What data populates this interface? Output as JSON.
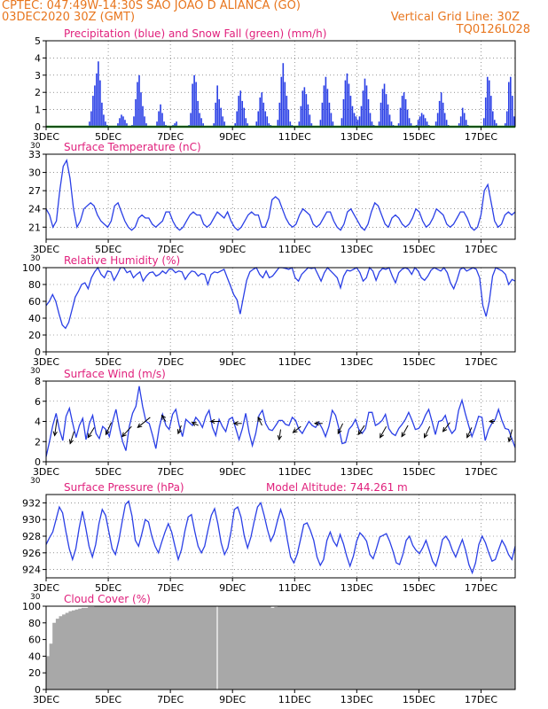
{
  "header": {
    "station": "CPTEC:  047:49W-14:30S  SAO JOAO D ALIANCA (GO)",
    "run": "03DEC2020 30Z (GMT)",
    "grid_note": "Vertical Grid Line: 30Z",
    "code": "TQ0126L028"
  },
  "colors": {
    "header": "#e8761e",
    "panel_title": "#e0207c",
    "line": "#2a3fe6",
    "precip_bar": "#2a3fe6",
    "snow_line": "#2ca02c",
    "cloud_fill": "#a8a8a8",
    "wind_arrow": "#000000",
    "grid": "#555555"
  },
  "x_axis": {
    "day_labels": [
      "3DEC",
      "5DEC",
      "7DEC",
      "9DEC",
      "11DEC",
      "13DEC",
      "15DEC",
      "17DEC"
    ],
    "day_positions": [
      3,
      5,
      7,
      9,
      11,
      13,
      15,
      17
    ],
    "xlim": [
      3,
      18.1
    ],
    "lower_left_overlap_label": "30"
  },
  "chart_data": [
    {
      "id": "precip",
      "type": "bar",
      "title": "Precipitation (blue) and Snow Fall (green) (mm/h)",
      "ylim": [
        0,
        5
      ],
      "yticks": [
        0,
        1,
        2,
        3,
        4,
        5
      ],
      "grid": true,
      "snow": 0,
      "values": [
        0,
        0,
        0,
        0,
        0,
        0,
        0,
        0,
        0,
        0,
        0,
        0,
        0,
        0,
        0,
        0,
        0,
        0,
        0,
        0,
        0,
        0,
        0,
        0,
        0.3,
        0.9,
        1.8,
        2.4,
        3.1,
        3.8,
        2.7,
        1.4,
        0.7,
        0.3,
        0.1,
        0,
        0,
        0,
        0,
        0,
        0.2,
        0.5,
        0.7,
        0.6,
        0.4,
        0.2,
        0,
        0,
        0.1,
        0.6,
        1.6,
        2.6,
        3.0,
        2.0,
        1.2,
        0.6,
        0.2,
        0,
        0,
        0,
        0,
        0,
        0.3,
        0.9,
        1.3,
        0.8,
        0.3,
        0.1,
        0,
        0,
        0,
        0.1,
        0.2,
        0.3,
        0,
        0,
        0,
        0,
        0,
        0,
        0.1,
        0.8,
        2.5,
        3.0,
        2.6,
        1.5,
        0.8,
        0.5,
        0.2,
        0,
        0,
        0,
        0,
        0,
        0.2,
        1.4,
        2.4,
        1.6,
        1.1,
        0.6,
        0.3,
        0,
        0,
        0,
        0,
        0,
        0.2,
        0.9,
        1.8,
        2.1,
        1.5,
        1.1,
        0.5,
        0.2,
        0,
        0,
        0,
        0,
        0.3,
        0.9,
        1.7,
        2.0,
        1.4,
        0.9,
        0.6,
        0.2,
        0.1,
        0,
        0,
        0,
        0.4,
        1.4,
        2.9,
        3.7,
        2.6,
        1.8,
        1.0,
        0.3,
        0.1,
        0,
        0,
        0,
        0.3,
        1.2,
        2.1,
        2.3,
        1.9,
        1.3,
        0.7,
        0.2,
        0,
        0,
        0,
        0,
        0.4,
        1.4,
        2.4,
        2.9,
        2.2,
        1.4,
        0.8,
        0.3,
        0,
        0,
        0,
        0,
        0.5,
        1.6,
        2.7,
        3.1,
        2.5,
        1.8,
        1.2,
        0.8,
        0.6,
        0.4,
        0.6,
        1.2,
        2.1,
        2.8,
        2.4,
        1.6,
        0.8,
        0.3,
        0.1,
        0,
        0,
        0.3,
        1.4,
        2.2,
        2.5,
        1.9,
        1.3,
        0.7,
        0.3,
        0.1,
        0,
        0,
        0.2,
        1.1,
        1.8,
        2.0,
        1.6,
        1.0,
        0.5,
        0.2,
        0,
        0,
        0.1,
        0.4,
        0.6,
        0.8,
        0.7,
        0.5,
        0.3,
        0.1,
        0,
        0,
        0,
        0.3,
        0.8,
        1.5,
        2.0,
        1.4,
        0.8,
        0.4,
        0.1,
        0,
        0,
        0,
        0,
        0,
        0.2,
        0.6,
        1.1,
        0.8,
        0.4,
        0.1,
        0,
        0,
        0,
        0,
        0,
        0,
        0,
        0,
        0.5,
        1.7,
        2.9,
        2.7,
        1.8,
        0.9,
        0.4,
        0.2,
        0,
        0,
        0,
        0,
        0.2,
        0.9,
        2.6,
        2.9,
        1.8,
        0.6
      ]
    },
    {
      "id": "temp",
      "type": "line",
      "title": "Surface Temperature (nC)",
      "ylim": [
        19,
        33
      ],
      "yticks": [
        21,
        24,
        27,
        30,
        33
      ],
      "grid": true,
      "values": [
        24,
        23,
        21,
        22,
        27,
        31,
        32,
        29,
        24,
        21,
        22,
        24,
        24.5,
        25,
        24.5,
        23,
        22,
        21.5,
        21,
        22,
        24.5,
        25,
        23.5,
        22,
        21,
        20.5,
        21,
        22.5,
        23,
        22.5,
        22.5,
        21.5,
        21,
        21.5,
        22,
        23.5,
        23.5,
        22,
        21,
        20.5,
        21,
        22,
        23,
        23.5,
        23,
        23,
        21.5,
        21,
        21.5,
        22.5,
        23.5,
        23,
        22.5,
        23.5,
        22,
        21,
        20.5,
        21,
        22,
        23,
        23.5,
        23,
        23,
        21,
        21,
        22.5,
        25.5,
        26,
        25.5,
        24,
        22.5,
        21.5,
        21,
        21.5,
        23,
        24,
        23.5,
        23,
        21.5,
        21,
        21.5,
        22.5,
        23.5,
        23.5,
        22,
        21,
        20.5,
        21.5,
        23.5,
        24,
        23,
        22,
        21,
        20.5,
        21.5,
        23.5,
        25,
        24.5,
        23,
        21.5,
        21,
        22.5,
        23,
        22.5,
        21.5,
        21,
        21.5,
        22.5,
        24,
        23.5,
        22,
        21,
        21.5,
        22.5,
        24,
        23.5,
        23,
        21.5,
        21,
        21.5,
        22.5,
        23.5,
        23.5,
        22.5,
        21,
        20.5,
        21,
        23,
        27,
        28,
        25,
        22,
        21,
        21.5,
        23,
        23.5,
        23,
        23.5
      ]
    },
    {
      "id": "rh",
      "type": "line",
      "title": "Relative Humidity (%)",
      "ylim": [
        0,
        100
      ],
      "yticks": [
        0,
        20,
        40,
        60,
        80,
        100
      ],
      "grid": true,
      "values": [
        55,
        60,
        68,
        60,
        45,
        32,
        28,
        35,
        50,
        65,
        72,
        80,
        82,
        75,
        88,
        95,
        100,
        92,
        88,
        96,
        95,
        85,
        92,
        100,
        100,
        94,
        96,
        88,
        92,
        95,
        84,
        90,
        94,
        95,
        90,
        92,
        96,
        93,
        98,
        98,
        94,
        96,
        95,
        86,
        92,
        96,
        95,
        90,
        93,
        92,
        80,
        92,
        95,
        94,
        96,
        98,
        88,
        78,
        68,
        62,
        45,
        65,
        85,
        95,
        98,
        100,
        92,
        88,
        96,
        88,
        90,
        95,
        100,
        100,
        99,
        98,
        100,
        88,
        84,
        92,
        96,
        100,
        99,
        100,
        92,
        84,
        94,
        100,
        96,
        92,
        88,
        76,
        90,
        97,
        96,
        98,
        100,
        94,
        84,
        88,
        100,
        96,
        85,
        95,
        99,
        98,
        100,
        90,
        82,
        94,
        98,
        100,
        98,
        92,
        100,
        96,
        88,
        85,
        90,
        97,
        100,
        98,
        96,
        100,
        94,
        82,
        75,
        85,
        98,
        100,
        96,
        98,
        100,
        98,
        88,
        55,
        42,
        60,
        90,
        100,
        98,
        96,
        92,
        80,
        86,
        84
      ]
    },
    {
      "id": "wind",
      "type": "line",
      "title": "Surface Wind (m/s)",
      "ylim": [
        0,
        8
      ],
      "yticks": [
        0,
        2,
        4,
        6,
        8
      ],
      "grid": true,
      "values": [
        0.5,
        2,
        3.6,
        4.8,
        3.2,
        2.1,
        4.5,
        5.3,
        3.8,
        2.4,
        3.6,
        4.3,
        2.2,
        3.8,
        4.6,
        2.8,
        2.3,
        3.5,
        3.2,
        2.5,
        4,
        5.2,
        3.4,
        2,
        1.1,
        3.5,
        4.8,
        5.5,
        7.5,
        5.5,
        4,
        3.8,
        2.6,
        1.3,
        3.4,
        4.7,
        3.6,
        3.2,
        4.7,
        5.2,
        3.6,
        2.5,
        4.2,
        3.9,
        3.6,
        4.4,
        4,
        3.4,
        4.5,
        5.1,
        3.4,
        2.6,
        4.2,
        3.5,
        3,
        4.2,
        4.4,
        3.3,
        2.2,
        3.3,
        4.8,
        2.9,
        1.6,
        2.8,
        4.6,
        5.1,
        3.8,
        3.2,
        3.1,
        3.6,
        4.1,
        4.1,
        3.7,
        3.6,
        4.4,
        4.1,
        3.2,
        2.8,
        3.4,
        4,
        3.6,
        3.4,
        3.9,
        3.3,
        2.5,
        3.5,
        5.1,
        4.6,
        3.3,
        1.8,
        1.9,
        3.2,
        3.6,
        4.2,
        3.2,
        2.8,
        3.3,
        4.9,
        4.9,
        3.6,
        3.8,
        4.1,
        4.7,
        3.3,
        2.8,
        2.6,
        3.3,
        3.7,
        4.2,
        4.9,
        4.1,
        3.2,
        3.3,
        3.8,
        4.6,
        5.2,
        4,
        2.7,
        4,
        4.1,
        4.6,
        3.4,
        2.8,
        3.2,
        5.1,
        6.1,
        4.8,
        3.6,
        2.5,
        3.4,
        4.5,
        4.4,
        2.1,
        3.2,
        3.8,
        4.2,
        5.2,
        4.1,
        3.3,
        3.2,
        2.3,
        1.4
      ],
      "arrows": [
        {
          "x": 3.35,
          "y": 4.2,
          "dx": -0.15,
          "dy": -1.6
        },
        {
          "x": 3.9,
          "y": 3.0,
          "dx": -0.25,
          "dy": -1.2
        },
        {
          "x": 4.55,
          "y": 3.4,
          "dx": -0.4,
          "dy": -1.0
        },
        {
          "x": 5.1,
          "y": 3.9,
          "dx": -0.35,
          "dy": -1.2
        },
        {
          "x": 5.75,
          "y": 3.5,
          "dx": -0.6,
          "dy": -1.0
        },
        {
          "x": 6.35,
          "y": 4.4,
          "dx": -0.8,
          "dy": -1.0
        },
        {
          "x": 6.85,
          "y": 4.0,
          "dx": -0.25,
          "dy": 0.6
        },
        {
          "x": 7.35,
          "y": 3.6,
          "dx": -0.2,
          "dy": -0.8
        },
        {
          "x": 7.9,
          "y": 3.6,
          "dx": -0.4,
          "dy": 0.3
        },
        {
          "x": 8.6,
          "y": 4.0,
          "dx": -0.6,
          "dy": 0.0
        },
        {
          "x": 9.3,
          "y": 3.8,
          "dx": -0.5,
          "dy": 0.0
        },
        {
          "x": 9.95,
          "y": 3.6,
          "dx": -0.25,
          "dy": 0.8
        },
        {
          "x": 10.55,
          "y": 3.2,
          "dx": -0.1,
          "dy": -1.0
        },
        {
          "x": 11.2,
          "y": 3.5,
          "dx": -0.5,
          "dy": -0.6
        },
        {
          "x": 11.9,
          "y": 3.8,
          "dx": -0.5,
          "dy": 0.0
        },
        {
          "x": 12.55,
          "y": 3.8,
          "dx": -0.3,
          "dy": -1.0
        },
        {
          "x": 13.25,
          "y": 3.6,
          "dx": -0.4,
          "dy": -0.9
        },
        {
          "x": 13.95,
          "y": 3.5,
          "dx": -0.4,
          "dy": -1.1
        },
        {
          "x": 14.65,
          "y": 3.6,
          "dx": -0.4,
          "dy": -1.1
        },
        {
          "x": 15.35,
          "y": 3.5,
          "dx": -0.35,
          "dy": -1.1
        },
        {
          "x": 16.0,
          "y": 3.9,
          "dx": -0.45,
          "dy": -0.9
        },
        {
          "x": 16.7,
          "y": 3.4,
          "dx": -0.3,
          "dy": -1.0
        },
        {
          "x": 17.45,
          "y": 4.0,
          "dx": -0.35,
          "dy": 0.0
        },
        {
          "x": 18.0,
          "y": 3.2,
          "dx": -0.2,
          "dy": -1.2
        }
      ]
    },
    {
      "id": "pressure",
      "type": "line",
      "title": "Surface Pressure (hPa)",
      "subtitle": "Model Altitude: 744.261  m",
      "ylim": [
        923,
        933
      ],
      "yticks": [
        924,
        926,
        928,
        930,
        932
      ],
      "grid": true,
      "values": [
        927,
        927.8,
        928.5,
        930,
        931.5,
        930.8,
        928.5,
        926.5,
        925.2,
        926.5,
        929,
        931,
        929,
        926.8,
        925.5,
        927,
        929.5,
        931.2,
        930.5,
        928.5,
        926.5,
        925.8,
        927.5,
        929.7,
        931.8,
        932.2,
        930.4,
        927.5,
        926.8,
        928.3,
        930,
        929.7,
        928,
        926.8,
        926,
        927.3,
        928.5,
        929.5,
        928.5,
        926.8,
        925.2,
        926.4,
        928.6,
        930.3,
        930.6,
        928.6,
        926.8,
        926,
        926.8,
        928.7,
        930.5,
        931.3,
        929.5,
        927.2,
        925.8,
        926.6,
        928.6,
        931.2,
        931.5,
        930.3,
        928,
        926.6,
        927.9,
        929.8,
        931.5,
        932,
        930.5,
        928.8,
        927.4,
        928.2,
        929.8,
        931.2,
        930,
        927.6,
        925.5,
        924.8,
        925.8,
        927.6,
        929.4,
        929.6,
        928.7,
        927.5,
        925.5,
        924.5,
        925.2,
        927.5,
        928.5,
        927.4,
        926.8,
        928.2,
        927.1,
        925.6,
        924.4,
        925.6,
        927.4,
        928.4,
        928,
        927.4,
        925.8,
        925.3,
        926.5,
        927.9,
        928.1,
        928.3,
        927.4,
        926.2,
        924.8,
        924.6,
        925.8,
        927.5,
        928,
        926.9,
        926.3,
        925.9,
        926.6,
        927.5,
        926.3,
        925,
        924.4,
        925.8,
        927.6,
        928,
        927.4,
        926.3,
        925.5,
        926.6,
        927.6,
        926.3,
        924.6,
        923.6,
        924.8,
        927,
        928,
        927.2,
        926,
        925,
        925.2,
        926.4,
        927.5,
        926.8,
        925.8,
        925.2,
        926.8
      ]
    },
    {
      "id": "cloud",
      "type": "area",
      "title": "Cloud Cover (%)",
      "ylim": [
        0,
        100
      ],
      "yticks": [
        0,
        20,
        40,
        60,
        80,
        100
      ],
      "grid": false,
      "values": [
        40,
        55,
        80,
        85,
        88,
        90,
        92,
        94,
        95,
        96,
        97,
        98,
        98,
        99,
        99,
        100,
        100,
        100,
        100,
        100,
        100,
        100,
        100,
        100,
        100,
        100,
        100,
        100,
        100,
        100,
        100,
        100,
        100,
        100,
        100,
        100,
        100,
        100,
        100,
        100,
        100,
        100,
        100,
        100,
        100,
        100,
        100,
        100,
        100,
        100,
        100,
        100,
        100,
        100,
        100,
        100,
        100,
        100,
        100,
        100,
        100,
        100,
        100,
        100,
        100,
        100,
        100,
        100,
        100,
        100,
        98,
        99,
        100,
        100,
        100,
        100,
        100,
        100,
        100,
        100,
        100,
        100,
        100,
        100,
        100,
        100,
        100,
        100,
        100,
        100,
        100,
        100,
        100,
        100,
        100,
        100,
        100,
        100,
        100,
        100,
        100,
        100,
        100,
        100,
        100,
        100,
        100,
        100,
        100,
        100,
        100,
        100,
        100,
        100,
        100,
        100,
        100,
        100,
        100,
        100,
        100,
        100,
        100,
        100,
        100,
        100,
        100,
        100,
        100,
        100,
        100,
        100,
        100,
        100,
        100,
        100,
        100,
        100,
        100,
        100,
        100,
        100,
        100,
        100,
        100,
        100
      ]
    }
  ]
}
